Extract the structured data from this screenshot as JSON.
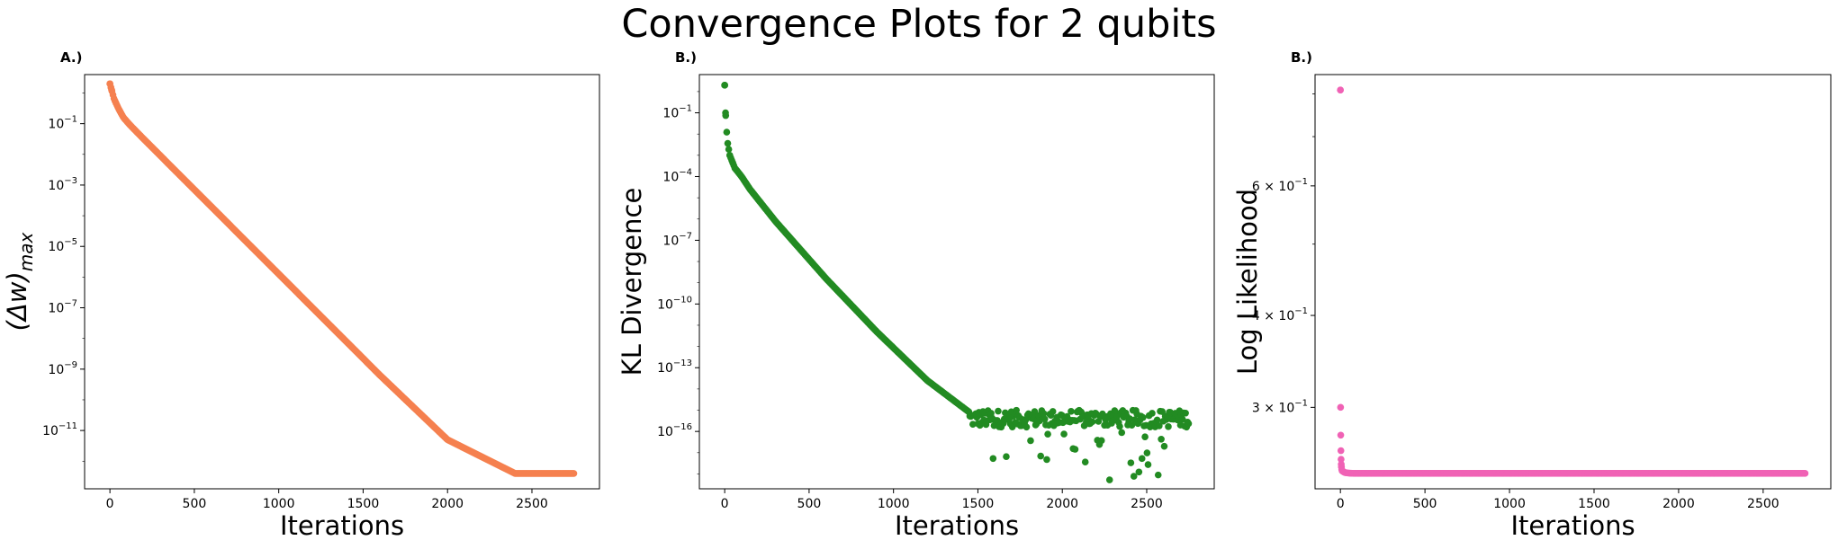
{
  "figure": {
    "title": "Convergence Plots for 2 qubits"
  },
  "colors": {
    "panel_a": "#f5804f",
    "panel_b": "#228b22",
    "panel_c": "#f062b5"
  },
  "chart_data": [
    {
      "type": "scatter",
      "panel_label": "A.)",
      "xlabel": "Iterations",
      "ylabel": "(Δw)max",
      "ylabel_parts": {
        "base": "(Δw)",
        "sub": "max"
      },
      "yscale": "log",
      "xlim": [
        -150,
        2900
      ],
      "ylim_exp": [
        -12.9,
        0.6
      ],
      "xticks": [
        0,
        500,
        1000,
        1500,
        2000,
        2500
      ],
      "yticks": [
        {
          "exp": -1,
          "label_base": "10",
          "label_exp": "−1"
        },
        {
          "exp": -3,
          "label_base": "10",
          "label_exp": "−3"
        },
        {
          "exp": -5,
          "label_base": "10",
          "label_exp": "−5"
        },
        {
          "exp": -7,
          "label_base": "10",
          "label_exp": "−7"
        },
        {
          "exp": -9,
          "label_base": "10",
          "label_exp": "−9"
        },
        {
          "exp": -11,
          "label_base": "10",
          "label_exp": "−11"
        }
      ],
      "series": [
        {
          "color": "#f5804f",
          "iterations": 2750,
          "x": [
            0,
            10,
            25,
            50,
            80,
            120,
            200,
            400,
            800,
            1200,
            1600,
            2000,
            2400,
            2750
          ],
          "y_exp": [
            0.3,
            0.1,
            -0.2,
            -0.5,
            -0.8,
            -1.05,
            -1.5,
            -2.6,
            -4.8,
            -7.0,
            -9.2,
            -11.3,
            -12.4,
            -12.4
          ]
        }
      ]
    },
    {
      "type": "scatter",
      "panel_label": "B.)",
      "xlabel": "Iterations",
      "ylabel": "KL Divergence",
      "yscale": "log",
      "xlim": [
        -150,
        2900
      ],
      "ylim_exp": [
        -18.7,
        0.8
      ],
      "xticks": [
        0,
        500,
        1000,
        1500,
        2000,
        2500
      ],
      "yticks": [
        {
          "exp": -1,
          "label_base": "10",
          "label_exp": "−1"
        },
        {
          "exp": -4,
          "label_base": "10",
          "label_exp": "−4"
        },
        {
          "exp": -7,
          "label_base": "10",
          "label_exp": "−7"
        },
        {
          "exp": -10,
          "label_base": "10",
          "label_exp": "−10"
        },
        {
          "exp": -13,
          "label_base": "10",
          "label_exp": "−13"
        },
        {
          "exp": -16,
          "label_base": "10",
          "label_exp": "−16"
        }
      ],
      "series": [
        {
          "color": "#228b22",
          "x": [
            0,
            5,
            15,
            30,
            60,
            100,
            150,
            300,
            600,
            900,
            1200,
            1400,
            1450,
            1500,
            1750,
            2000,
            2250,
            2500,
            2750
          ],
          "y_exp": [
            0.3,
            -1.0,
            -2.3,
            -3.0,
            -3.6,
            -4.0,
            -4.6,
            -6.1,
            -8.8,
            -11.3,
            -13.6,
            -14.8,
            -15.1,
            -15.2,
            -15.4,
            -15.4,
            -15.4,
            -15.4,
            -15.4
          ],
          "noise_floor": {
            "x_start": 1450,
            "x_end": 2750,
            "y_exp_center": -15.4,
            "y_exp_spread": 0.4,
            "outliers_y_exp_min": -18.3
          }
        }
      ]
    },
    {
      "type": "scatter",
      "panel_label": "B.)",
      "xlabel": "Iterations",
      "ylabel": "Log Likelihood",
      "yscale": "log",
      "xlim": [
        -150,
        2900
      ],
      "ylim": [
        0.2325,
        0.85
      ],
      "xticks": [
        0,
        500,
        1000,
        1500,
        2000,
        2500
      ],
      "yticks": [
        {
          "value": 0.6,
          "label_base": "6 × 10",
          "label_exp": "−1"
        },
        {
          "value": 0.4,
          "label_base": "4 × 10",
          "label_exp": "−1"
        },
        {
          "value": 0.3,
          "label_base": "3 × 10",
          "label_exp": "−1"
        }
      ],
      "minor_yticks": [
        0.5,
        0.7,
        0.8
      ],
      "series": [
        {
          "color": "#f062b5",
          "x": [
            0,
            1,
            2,
            3,
            4,
            5,
            6,
            8,
            10,
            15,
            20,
            30,
            50,
            80,
            120,
            500,
            1000,
            1500,
            2000,
            2500,
            2750
          ],
          "y": [
            0.81,
            0.3,
            0.275,
            0.262,
            0.255,
            0.251,
            0.249,
            0.247,
            0.246,
            0.2455,
            0.245,
            0.2445,
            0.2442,
            0.244,
            0.244,
            0.244,
            0.244,
            0.244,
            0.244,
            0.244,
            0.244
          ]
        }
      ]
    }
  ]
}
